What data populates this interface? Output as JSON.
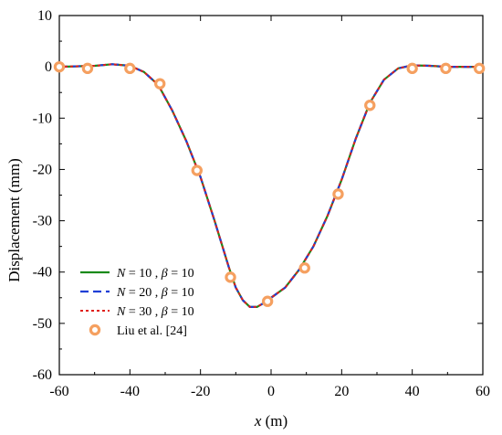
{
  "chart_data": {
    "type": "line",
    "title": "",
    "xlabel_var": "x",
    "xlabel_unit": " (m)",
    "ylabel": "Displacement (mm)",
    "xlim": [
      -60,
      60
    ],
    "ylim": [
      -60,
      10
    ],
    "xticks": [
      -60,
      -40,
      -20,
      0,
      20,
      40,
      60
    ],
    "yticks": [
      10,
      0,
      -10,
      -20,
      -30,
      -40,
      -50,
      -60
    ],
    "grid": false,
    "legend_position": "bottom-left",
    "series": [
      {
        "name": "N = 10 , β = 10",
        "legend_N": "N",
        "legend_mid1": " = 10 , ",
        "legend_beta": "β",
        "legend_mid2": " = 10",
        "style": "solid",
        "color": "#1a8a1a",
        "x": [
          -60,
          -50,
          -45,
          -40,
          -36,
          -32,
          -28,
          -24,
          -20,
          -16,
          -12,
          -10,
          -8,
          -6,
          -4,
          -2,
          0,
          4,
          8,
          12,
          16,
          20,
          24,
          28,
          32,
          36,
          40,
          45,
          50,
          55,
          60
        ],
        "y": [
          0,
          0.2,
          0.5,
          0.2,
          -1,
          -3.5,
          -8.5,
          -14.5,
          -21.5,
          -30,
          -39,
          -43,
          -45.5,
          -46.8,
          -46.8,
          -46,
          -45,
          -43,
          -39.5,
          -35,
          -29,
          -22,
          -14,
          -7,
          -2.5,
          -0.3,
          0.3,
          0.2,
          0,
          0,
          0
        ]
      },
      {
        "name": "N = 20 , β = 10",
        "legend_N": "N",
        "legend_mid1": " = 20 , ",
        "legend_beta": "β",
        "legend_mid2": " = 10",
        "style": "dashed",
        "color": "#1f3fd6",
        "x": [
          -60,
          -50,
          -45,
          -40,
          -36,
          -32,
          -28,
          -24,
          -20,
          -16,
          -12,
          -10,
          -8,
          -6,
          -4,
          -2,
          0,
          4,
          8,
          12,
          16,
          20,
          24,
          28,
          32,
          36,
          40,
          45,
          50,
          55,
          60
        ],
        "y": [
          0,
          0.2,
          0.5,
          0.2,
          -1,
          -3.5,
          -8.5,
          -14.5,
          -21.5,
          -30,
          -39,
          -43,
          -45.5,
          -46.8,
          -46.8,
          -46,
          -45,
          -43,
          -39.5,
          -35,
          -29,
          -22,
          -14,
          -7,
          -2.5,
          -0.3,
          0.3,
          0.2,
          0,
          0,
          0
        ]
      },
      {
        "name": "N = 30 , β = 10",
        "legend_N": "N",
        "legend_mid1": " = 30 , ",
        "legend_beta": "β",
        "legend_mid2": " = 10",
        "style": "dotted",
        "color": "#e0201a",
        "x": [
          -60,
          -50,
          -45,
          -40,
          -36,
          -32,
          -28,
          -24,
          -20,
          -16,
          -12,
          -10,
          -8,
          -6,
          -4,
          -2,
          0,
          4,
          8,
          12,
          16,
          20,
          24,
          28,
          32,
          36,
          40,
          45,
          50,
          55,
          60
        ],
        "y": [
          0,
          0.2,
          0.5,
          0.2,
          -1,
          -3.5,
          -8.5,
          -14.5,
          -21.5,
          -30,
          -39,
          -43,
          -45.5,
          -46.8,
          -46.8,
          -46,
          -45,
          -43,
          -39.5,
          -35,
          -29,
          -22,
          -14,
          -7,
          -2.5,
          -0.3,
          0.3,
          0.2,
          0,
          0,
          0
        ]
      },
      {
        "name": "Liu et al. [24]",
        "style": "markers",
        "color": "#f5a060",
        "x": [
          -60,
          -52,
          -40,
          -31.5,
          -21,
          -11.5,
          -1,
          9.5,
          19,
          28,
          40,
          49.5,
          59
        ],
        "y": [
          0,
          -0.3,
          -0.3,
          -3.3,
          -20.2,
          -41,
          -45.7,
          -39.2,
          -24.8,
          -7.5,
          -0.3,
          -0.3,
          -0.3
        ]
      }
    ]
  }
}
